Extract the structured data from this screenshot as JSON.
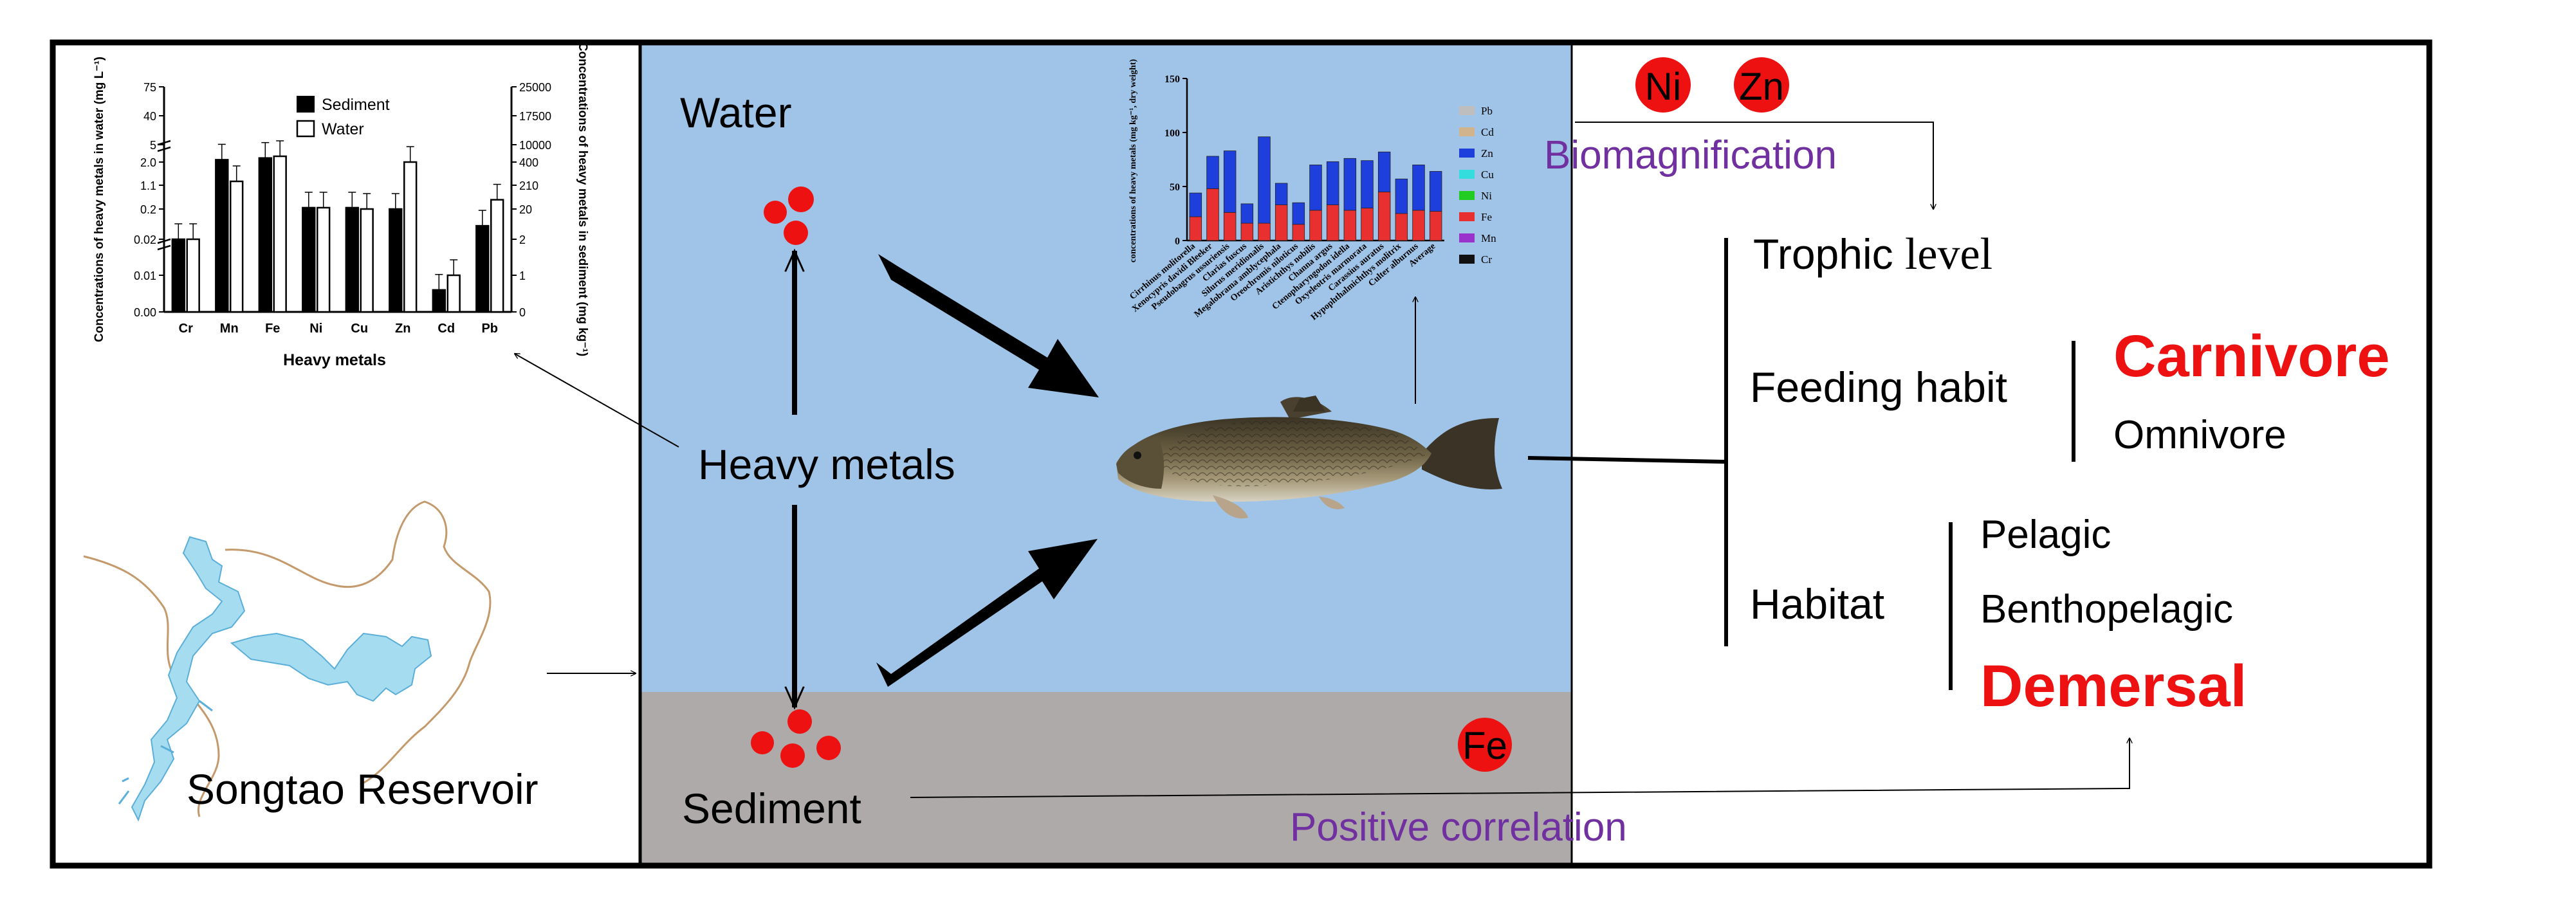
{
  "water_panel": {
    "label": "Water",
    "metals_label": "Heavy metals",
    "sediment_label": "Sediment",
    "colors": {
      "water": "#a0c4e8",
      "sediment": "#aeaaaa"
    }
  },
  "reservoir": {
    "label": "Songtao Reservoir",
    "colors": {
      "lake": "#a6dcef",
      "lake_outline": "#5aaed8",
      "boundary": "#c49a6c"
    }
  },
  "markers": {
    "ni": "Ni",
    "zn": "Zn",
    "fe": "Fe",
    "color": "#ee1111"
  },
  "relations": {
    "biomagnification": "Biomagnification",
    "positive_correlation": "Positive correlation",
    "color": "#7030a0"
  },
  "factors": {
    "trophic_label": "Trophic",
    "trophic_label_serif": "level",
    "feeding_label": "Feeding habit",
    "carnivore": "Carnivore",
    "omnivore": "Omnivore",
    "habitat_label": "Habitat",
    "pelagic": "Pelagic",
    "benthopelagic": "Benthopelagic",
    "demersal": "Demersal",
    "highlight_color": "#ee1111"
  },
  "chart_data": [
    {
      "type": "bar",
      "xlabel": "Heavy metals",
      "ylabel": "Concentrations of heavy metals in water (mg L⁻¹)",
      "y2label": "Concentrations of heavy metals in sediment (mg kg⁻¹)",
      "categories": [
        "Cr",
        "Mn",
        "Fe",
        "Ni",
        "Cu",
        "Zn",
        "Cd",
        "Pb"
      ],
      "left_ticks": [
        "0.00",
        "0.01",
        "0.02",
        "0.2",
        "1.1",
        "2.0",
        "5",
        "40",
        "75"
      ],
      "right_ticks": [
        "0",
        "1",
        "2",
        "20",
        "210",
        "400",
        "10000",
        "17500",
        "25000"
      ],
      "series": [
        {
          "name": "Sediment",
          "values": [
            0.02,
            2.4,
            2.7,
            0.25,
            0.25,
            0.2,
            0.006,
            0.1
          ],
          "color": "#000000"
        },
        {
          "name": "Water",
          "values": [
            0.02,
            1.25,
            3.0,
            0.25,
            0.2,
            2.0,
            0.01,
            0.55
          ],
          "color": "#ffffff"
        }
      ],
      "legend": "top-right"
    },
    {
      "type": "bar",
      "stacked": true,
      "ylabel": "concentrations of heavy metals (mg kg⁻¹, dry weight)",
      "ylim": [
        0,
        150
      ],
      "yticks": [
        "0",
        "50",
        "100",
        "150"
      ],
      "categories": [
        "Cirrhinus molitorella",
        "Xenocypris davidi Bleeker",
        "Pseudobagrus ussuriensis",
        "Clarias fuscus",
        "Silurus meridionalis",
        "Megalobrama amblycephala",
        "Oreochromis niloticus",
        "Aristichthys nobilis",
        "Channa argus",
        "Ctenopharyngodon idella",
        "Oxyeleotris marmorata",
        "Carassius auratus",
        "Hypophthalmichthys molitrix",
        "Culter alburnus",
        "Average"
      ],
      "series": [
        {
          "name": "Pb",
          "values": [
            0,
            0,
            0,
            0,
            0,
            0,
            0,
            0,
            0,
            0,
            0,
            0,
            0,
            0,
            0
          ],
          "color": "#bebebe"
        },
        {
          "name": "Cd",
          "values": [
            0,
            0,
            0,
            0,
            0,
            0,
            0,
            0,
            0,
            0,
            0,
            0,
            0,
            0,
            0
          ],
          "color": "#d2b48c"
        },
        {
          "name": "Zn",
          "values": [
            22,
            30,
            57,
            18,
            80,
            20,
            20,
            42,
            40,
            48,
            44,
            37,
            32,
            42,
            37
          ],
          "color": "#1e3fdc"
        },
        {
          "name": "Cu",
          "values": [
            0,
            0,
            0,
            0,
            0,
            0,
            0,
            0,
            0,
            0,
            0,
            0,
            0,
            0,
            0
          ],
          "color": "#33dddd"
        },
        {
          "name": "Ni",
          "values": [
            0,
            0,
            0,
            0,
            0,
            0,
            0,
            0,
            0,
            0,
            0,
            0,
            0,
            0,
            0
          ],
          "color": "#22cc22"
        },
        {
          "name": "Fe",
          "values": [
            22,
            48,
            26,
            16,
            16,
            33,
            15,
            28,
            33,
            28,
            30,
            45,
            25,
            28,
            27
          ],
          "color": "#e83030"
        },
        {
          "name": "Mn",
          "values": [
            0,
            0,
            0,
            0,
            0,
            0,
            0,
            0,
            0,
            0,
            0,
            0,
            0,
            0,
            0
          ],
          "color": "#9933cc"
        },
        {
          "name": "Cr",
          "values": [
            0,
            0,
            0,
            0,
            0,
            0,
            0,
            0,
            0,
            0,
            0,
            0,
            0,
            0,
            0
          ],
          "color": "#111111"
        }
      ],
      "legend": "right"
    }
  ]
}
